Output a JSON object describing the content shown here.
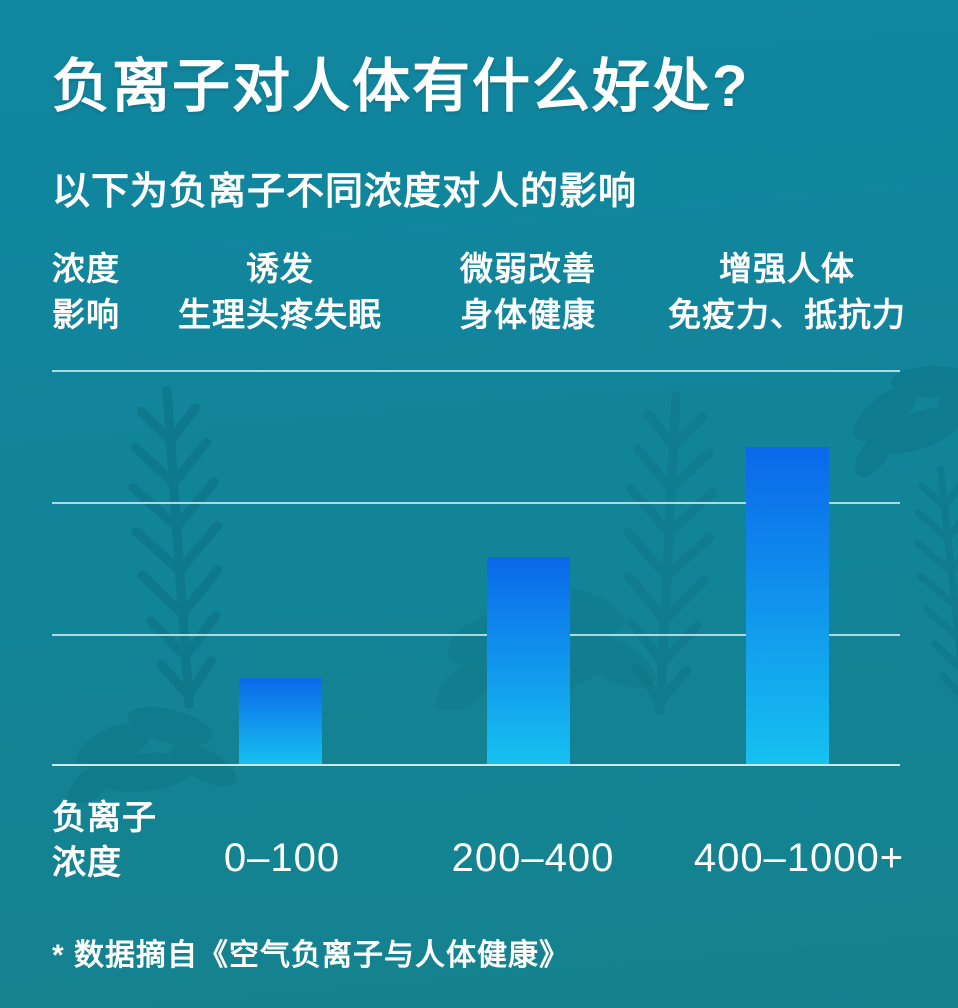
{
  "page": {
    "title": "负离子对人体有什么好处?",
    "subtitle": "以下为负离子不同浓度对人的影响",
    "footnote": "* 数据摘自《空气负离子与人体健康》"
  },
  "table": {
    "corner": {
      "line1": "浓度",
      "line2": "影响"
    },
    "effects": [
      {
        "line1": "诱发",
        "line2": "生理头疼失眠"
      },
      {
        "line1": "微弱改善",
        "line2": "身体健康"
      },
      {
        "line1": "增强人体",
        "line2": "免疫力、抵抗力"
      }
    ]
  },
  "axis": {
    "label_line1": "负离子",
    "label_line2": "浓度"
  },
  "chart_data": {
    "type": "bar",
    "title": "负离子对人体有什么好处?",
    "subtitle": "以下为负离子不同浓度对人的影响",
    "xlabel": "负离子浓度",
    "ylabel": "",
    "categories": [
      "0–100",
      "200–400",
      "400–1000+"
    ],
    "values": [
      0.67,
      1.58,
      2.42
    ],
    "value_unit": "relative bar height in gridline units (no numeric y-axis shown)",
    "effects_per_category": [
      "诱发生理头疼失眠",
      "微弱改善身体健康",
      "增强人体免疫力、抵抗力"
    ],
    "ylim": [
      0,
      3
    ],
    "gridlines_at": [
      1,
      2,
      3
    ],
    "grid": true,
    "legend": false,
    "source": "* 数据摘自《空气负离子与人体健康》"
  },
  "colors": {
    "background_top": "#0f87a0",
    "background_bottom": "#14828d",
    "bar_gradient_top": "#0a68ea",
    "bar_gradient_bottom": "#16c2f0",
    "gridline": "#cbe8ec",
    "text": "#ffffff",
    "fern_silhouette": "#07606f"
  }
}
